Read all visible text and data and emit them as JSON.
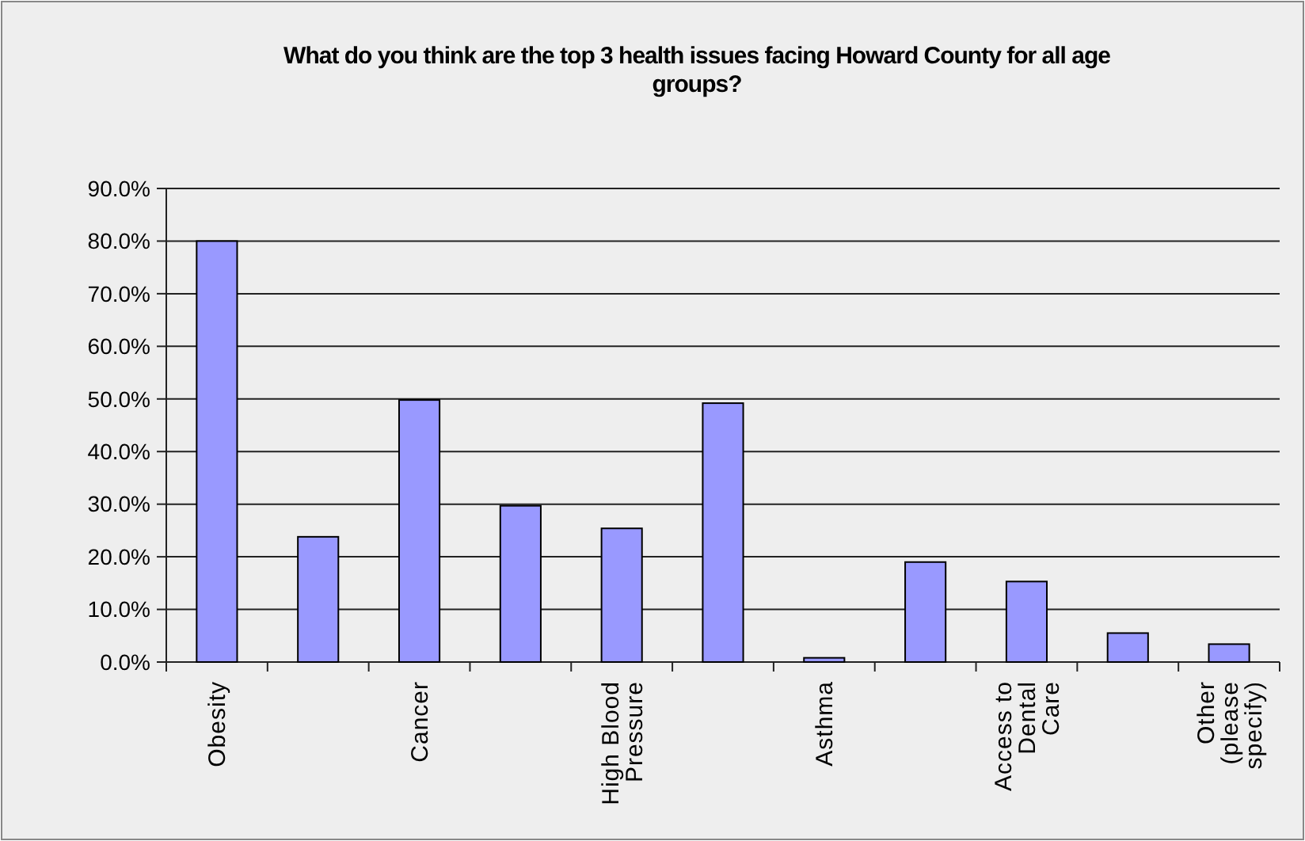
{
  "chart_data": {
    "type": "bar",
    "title": "What do you think are the top 3 health issues facing Howard County for all age groups?",
    "categories": [
      "Obesity",
      null,
      "Cancer",
      null,
      "High Blood Pressure",
      null,
      "Asthma",
      null,
      "Access to Dental Care",
      null,
      "Other (please specify)"
    ],
    "values": [
      80.0,
      23.8,
      49.8,
      29.7,
      25.4,
      49.2,
      0.8,
      19.0,
      15.3,
      5.5,
      3.4
    ],
    "color": "#9999ff",
    "ylim": [
      0,
      90
    ],
    "yticks": [
      {
        "value": 0,
        "label": "0.0%"
      },
      {
        "value": 10,
        "label": "10.0%"
      },
      {
        "value": 20,
        "label": "20.0%"
      },
      {
        "value": 30,
        "label": "30.0%"
      },
      {
        "value": 40,
        "label": "40.0%"
      },
      {
        "value": 50,
        "label": "50.0%"
      },
      {
        "value": 60,
        "label": "60.0%"
      },
      {
        "value": 70,
        "label": "70.0%"
      },
      {
        "value": 80,
        "label": "80.0%"
      },
      {
        "value": 90,
        "label": "90.0%"
      }
    ],
    "grid": "y"
  }
}
